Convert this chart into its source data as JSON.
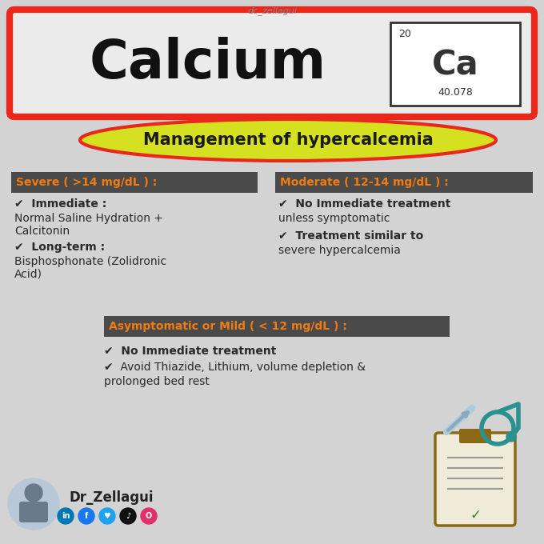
{
  "bg_color": "#d3d3d3",
  "title_watermark": "dc_zellagui",
  "calcium_text": "Calcium",
  "calcium_symbol": "Ca",
  "calcium_number": "20",
  "calcium_weight": "40.078",
  "header_bg": "#ebebeb",
  "header_border": "#e8281a",
  "subtitle": "Management of hypercalcemia",
  "subtitle_fill": "#d4e020",
  "subtitle_border": "#e8281a",
  "section_dark_bg": "#4a4a4a",
  "section_orange": "#f07b10",
  "severe_title": "Severe ( >14 mg/dL ) :",
  "severe_b1": "✔  Immediate :",
  "severe_t1a": "Normal Saline Hydration +",
  "severe_t1b": "Calcitonin",
  "severe_b2": "✔  Long-term :",
  "severe_t2a": "Bisphosphonate (Zolidronic",
  "severe_t2b": "Acid)",
  "moderate_title": "Moderate ( 12-14 mg/dL ) :",
  "moderate_b1": "✔  No Immediate treatment",
  "moderate_t1": "unless symptomatic",
  "moderate_b2": "✔  Treatment similar to",
  "moderate_t2": "severe hypercalcemia",
  "mild_title": "Asymptomatic or Mild ( < 12 mg/dL ) :",
  "mild_b1": "✔  No Immediate treatment",
  "mild_b2": "✔  Avoid Thiazide, Lithium, volume depletion &",
  "mild_t2": "prolonged bed rest",
  "footer_name": "Dr_Zellagui",
  "text_dark": "#2a2a2a",
  "check_dark": "#333333"
}
